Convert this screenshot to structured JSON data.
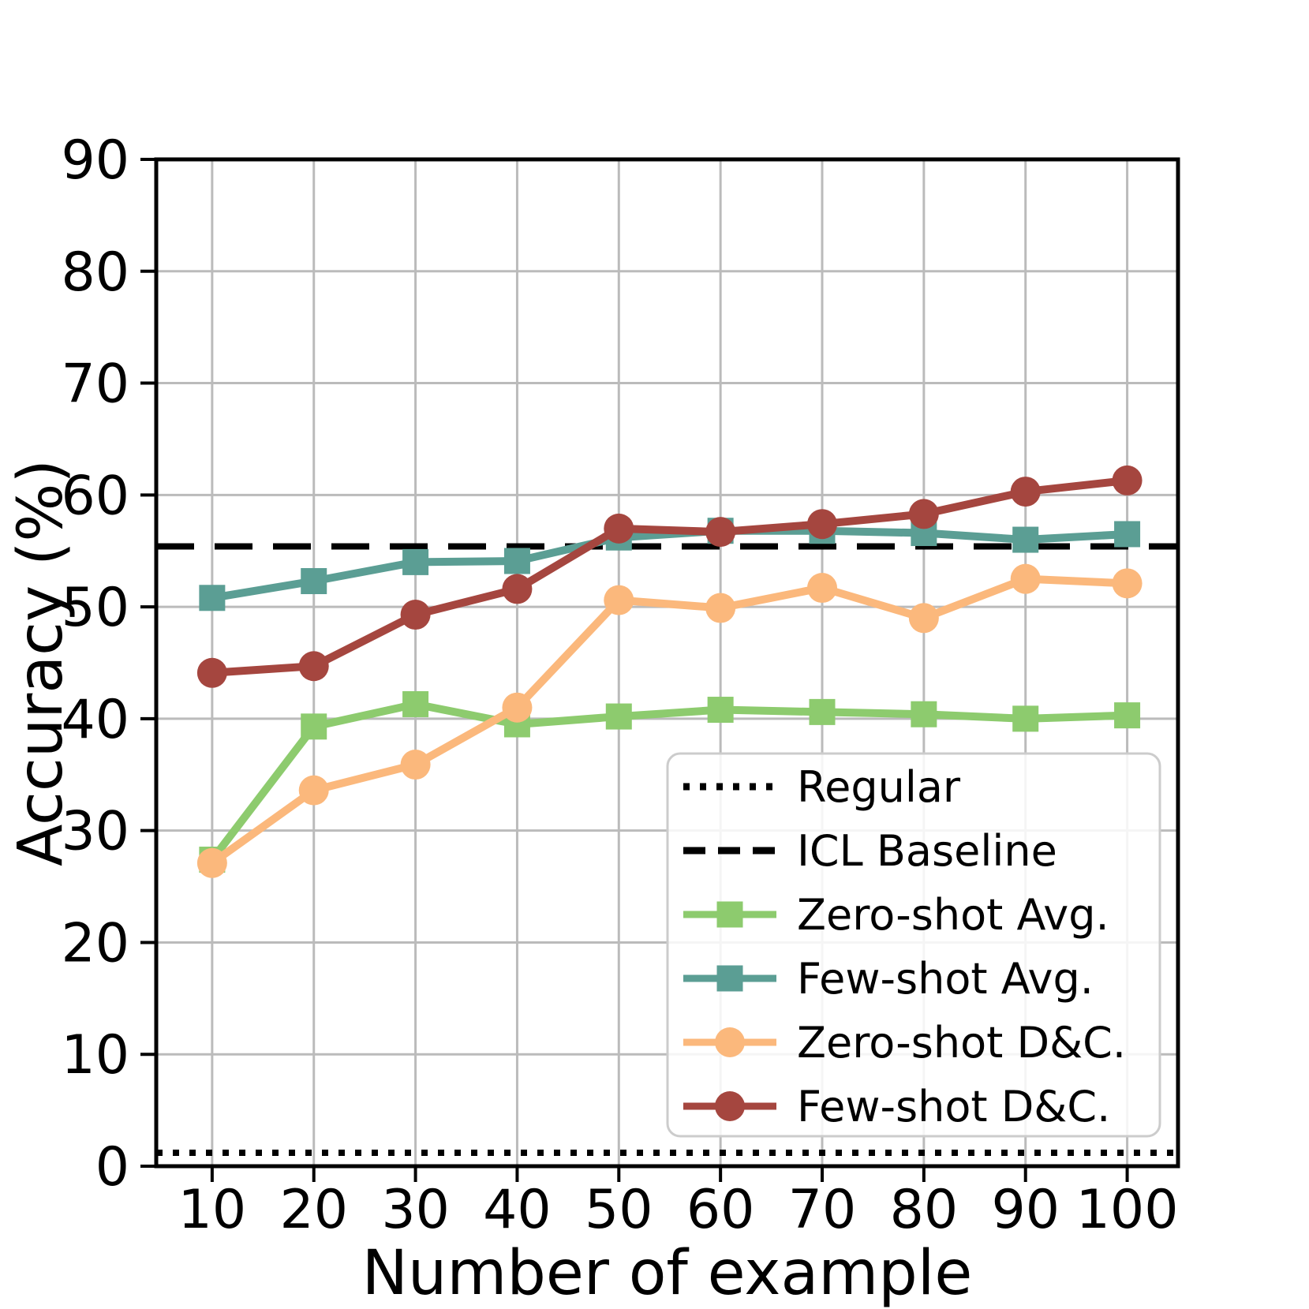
{
  "figure": {
    "background": "#ffffff",
    "grid_color": "#bbbbbb",
    "spine_color": "#000000",
    "legend_border_color": "#cccccc",
    "legend_background": "rgba(255,255,255,0.85)"
  },
  "chart_data": {
    "type": "line",
    "title": "",
    "xlabel": "Number of example",
    "ylabel": "Accuracy (%)",
    "x": [
      10,
      20,
      30,
      40,
      50,
      60,
      70,
      80,
      90,
      100
    ],
    "xlim": [
      4.5,
      105
    ],
    "ylim": [
      0,
      90
    ],
    "x_ticks": [
      10,
      20,
      30,
      40,
      50,
      60,
      70,
      80,
      90,
      100
    ],
    "y_ticks": [
      0,
      10,
      20,
      30,
      40,
      50,
      60,
      70,
      80,
      90
    ],
    "grid": true,
    "legend_position": "lower right",
    "reference_lines": [
      {
        "name": "Regular",
        "value": 1.2,
        "style": "dotted",
        "color": "#000000"
      },
      {
        "name": "ICL Baseline",
        "value": 55.4,
        "style": "dashed",
        "color": "#000000"
      }
    ],
    "series": [
      {
        "name": "Zero-shot Avg.",
        "marker": "square",
        "color": "#8dcb6e",
        "values": [
          27.4,
          39.3,
          41.3,
          39.5,
          40.2,
          40.8,
          40.6,
          40.4,
          40.0,
          40.3
        ]
      },
      {
        "name": "Few-shot Avg.",
        "marker": "square",
        "color": "#5b9e94",
        "values": [
          50.8,
          52.3,
          54.0,
          54.1,
          56.2,
          56.8,
          56.8,
          56.6,
          56.0,
          56.5
        ]
      },
      {
        "name": "Zero-shot D&C.",
        "marker": "circle",
        "color": "#fbb87c",
        "values": [
          27.1,
          33.6,
          35.9,
          41.0,
          50.6,
          49.9,
          51.7,
          49.0,
          52.5,
          52.1
        ]
      },
      {
        "name": "Few-shot D&C.",
        "marker": "circle",
        "color": "#a5463f",
        "values": [
          44.1,
          44.7,
          49.3,
          51.6,
          57.0,
          56.7,
          57.4,
          58.3,
          60.3,
          61.3
        ]
      }
    ],
    "legend_entries": [
      {
        "label": "Regular",
        "line": "dotted",
        "marker": "none",
        "color": "#000000"
      },
      {
        "label": "ICL Baseline",
        "line": "dashed",
        "marker": "none",
        "color": "#000000"
      },
      {
        "label": "Zero-shot Avg.",
        "line": "solid",
        "marker": "square",
        "color": "#8dcb6e"
      },
      {
        "label": "Few-shot Avg.",
        "line": "solid",
        "marker": "square",
        "color": "#5b9e94"
      },
      {
        "label": "Zero-shot D&C.",
        "line": "solid",
        "marker": "circle",
        "color": "#fbb87c"
      },
      {
        "label": "Few-shot D&C.",
        "line": "solid",
        "marker": "circle",
        "color": "#a5463f"
      }
    ]
  }
}
